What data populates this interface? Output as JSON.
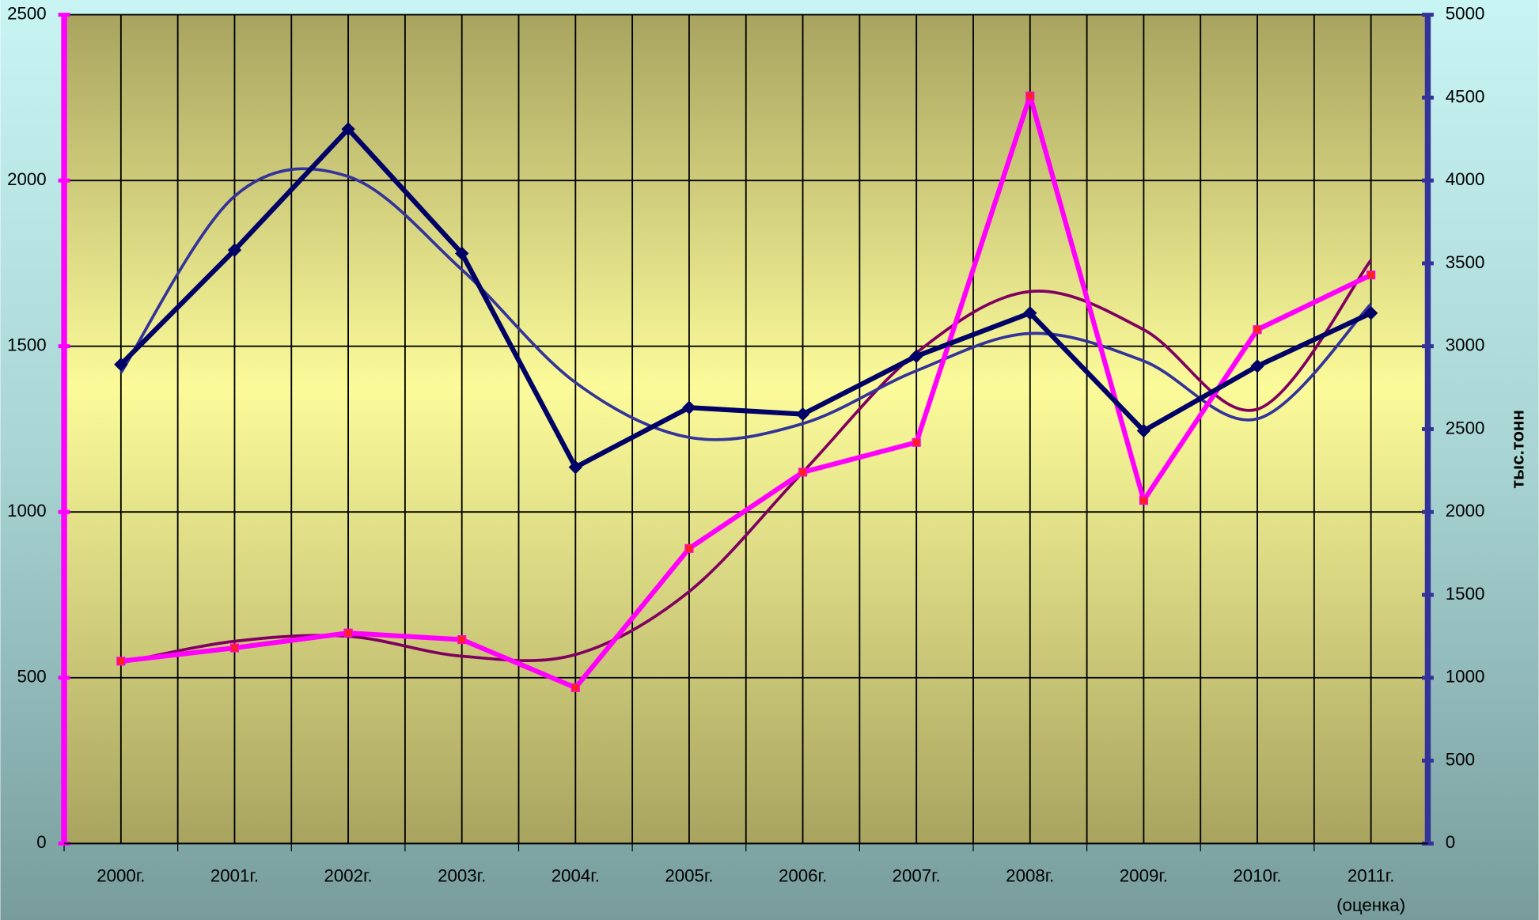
{
  "chart_data": {
    "type": "line",
    "categories": [
      "2000г.",
      "2001г.",
      "2002г.",
      "2003г.",
      "2004г.",
      "2005г.",
      "2006г.",
      "2007г.",
      "2008г.",
      "2009г.",
      "2010г.",
      "2011г."
    ],
    "category_note": "(оценка)",
    "y2_label": "тыс.тонн",
    "ylim": [
      0,
      2500
    ],
    "yticks": [
      0,
      500,
      1000,
      1500,
      2000,
      2500
    ],
    "y2lim": [
      0,
      5000
    ],
    "y2ticks": [
      0,
      500,
      1000,
      1500,
      2000,
      2500,
      3000,
      3500,
      4000,
      4500,
      5000
    ],
    "grid": true,
    "left_axis_color": "#ff00ff",
    "right_axis_color": "#333399",
    "series": [
      {
        "color": "#ff00ff",
        "marker": "square",
        "values": [
          550,
          590,
          635,
          615,
          470,
          890,
          1120,
          1210,
          2255,
          1035,
          1550,
          1715
        ]
      },
      {
        "color": "#000066",
        "marker": "diamond",
        "axis": "y2",
        "values": [
          2890,
          3580,
          4310,
          3560,
          2270,
          2630,
          2590,
          2940,
          3200,
          2490,
          2880,
          3200
        ]
      },
      {
        "color": "#800060",
        "marker": "none",
        "smooth": true,
        "values": [
          545,
          610,
          625,
          565,
          570,
          760,
          1120,
          1480,
          1665,
          1550,
          1310,
          1760
        ]
      },
      {
        "color": "#333399",
        "marker": "none",
        "smooth": true,
        "axis": "y2",
        "values": [
          2840,
          3905,
          4024,
          3462,
          2781,
          2450,
          2533,
          2852,
          3077,
          2911,
          2562,
          3254
        ]
      }
    ]
  }
}
